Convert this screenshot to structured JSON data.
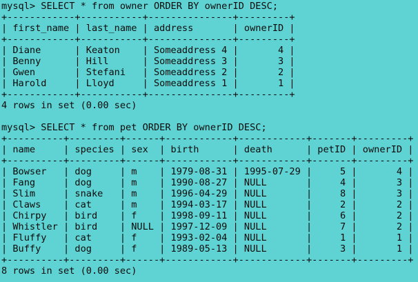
{
  "terminal": {
    "lines": [
      "mysql> SELECT * from owner ORDER BY ownerID DESC;",
      "+------------+-----------+---------------+---------+",
      "| first_name | last_name | address       | ownerID |",
      "+------------+-----------+---------------+---------+",
      "| Diane      | Keaton    | Someaddress 4 |       4 |",
      "| Benny      | Hill      | Someaddress 3 |       3 |",
      "| Gwen       | Stefani   | Someaddress 2 |       2 |",
      "| Harold     | Lloyd     | Someaddress 1 |       1 |",
      "+------------+-----------+---------------+---------+",
      "4 rows in set (0.00 sec)",
      "",
      "mysql> SELECT * from pet ORDER BY ownerID DESC;",
      "+----------+---------+------+------------+------------+-------+---------+",
      "| name     | species | sex  | birth      | death      | petID | ownerID |",
      "+----------+---------+------+------------+------------+-------+---------+",
      "| Bowser   | dog     | m    | 1979-08-31 | 1995-07-29 |     5 |       4 |",
      "| Fang     | dog     | m    | 1990-08-27 | NULL       |     4 |       3 |",
      "| Slim     | snake   | m    | 1996-04-29 | NULL       |     8 |       3 |",
      "| Claws    | cat     | m    | 1994-03-17 | NULL       |     2 |       2 |",
      "| Chirpy   | bird    | f    | 1998-09-11 | NULL       |     6 |       2 |",
      "| Whistler | bird    | NULL | 1997-12-09 | NULL       |     7 |       2 |",
      "| Fluffy   | cat     | f    | 1993-02-04 | NULL       |     1 |       1 |",
      "| Buffy    | dog     | f    | 1989-05-13 | NULL       |     3 |       1 |",
      "+----------+---------+------+------------+------------+-------+---------+",
      "8 rows in set (0.00 sec)"
    ]
  },
  "colors": {
    "background": "#5fd3d3",
    "text": "#0a0a0a"
  }
}
